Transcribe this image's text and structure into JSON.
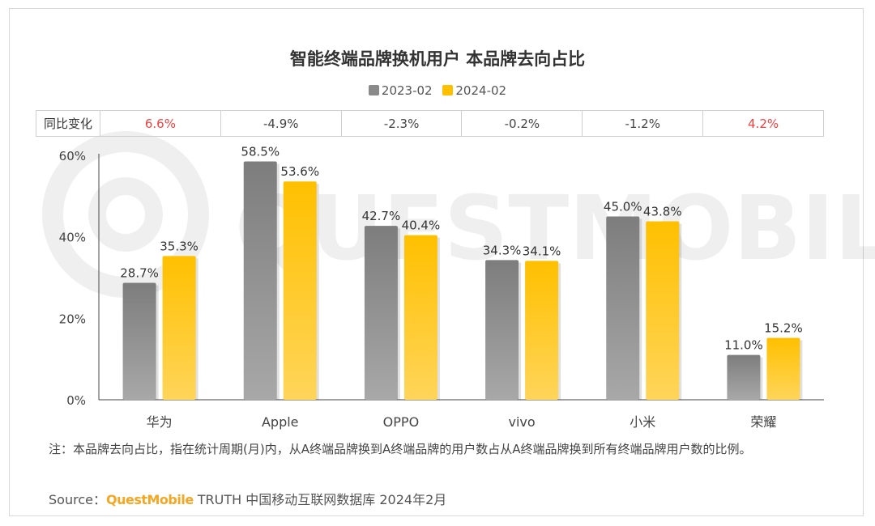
{
  "title": "智能终端品牌换机用户 本品牌去向占比",
  "legend": [
    {
      "label": "2023-02",
      "color": "#8a8a8a"
    },
    {
      "label": "2024-02",
      "color": "#ffc000"
    }
  ],
  "yoy": {
    "header": "同比变化",
    "values": [
      "6.6%",
      "-4.9%",
      "-2.3%",
      "-0.2%",
      "-1.2%",
      "4.2%"
    ],
    "positive_color": "#f04040",
    "negative_color": "#444444"
  },
  "chart_data": {
    "type": "bar",
    "categories": [
      "华为",
      "Apple",
      "OPPO",
      "vivo",
      "小米",
      "荣耀"
    ],
    "series": [
      {
        "name": "2023-02",
        "values": [
          28.7,
          58.5,
          42.7,
          34.3,
          45.0,
          11.0
        ],
        "labels": [
          "28.7%",
          "58.5%",
          "42.7%",
          "34.3%",
          "45.0%",
          "11.0%"
        ]
      },
      {
        "name": "2024-02",
        "values": [
          35.3,
          53.6,
          40.4,
          34.1,
          43.8,
          15.2
        ],
        "labels": [
          "35.3%",
          "53.6%",
          "40.4%",
          "34.1%",
          "43.8%",
          "15.2%"
        ]
      }
    ],
    "ylim": [
      0,
      60
    ],
    "yticks": [
      "0%",
      "20%",
      "40%",
      "60%"
    ],
    "yticks_values": [
      0,
      20,
      40,
      60
    ],
    "grid": false,
    "legend_position": "top-center"
  },
  "note": "注：本品牌去向占比，指在统计周期(月)内，从A终端品牌换到A终端品牌的用户数占从A终端品牌换到所有终端品牌用户数的比例。",
  "source": {
    "prefix": "Source：",
    "brand": "QuestMobile",
    "text": "TRUTH 中国移动互联网数据库 2024年2月"
  },
  "watermark": "QUESTMOBILE"
}
